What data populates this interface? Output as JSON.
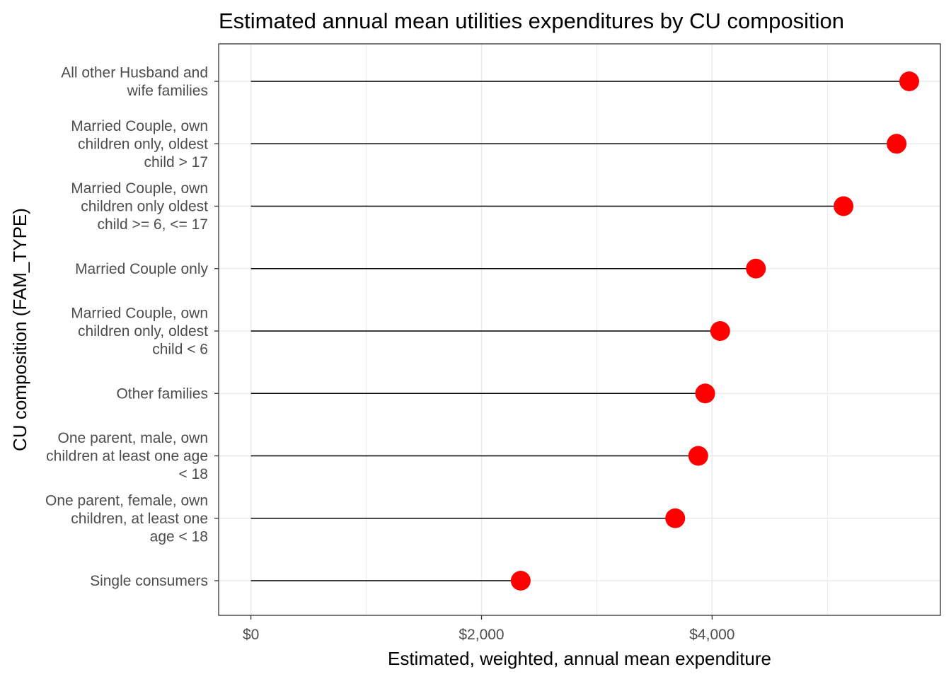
{
  "chart_data": {
    "type": "lollipop",
    "title": "Estimated annual mean utilities expenditures by CU composition",
    "xlabel": "Estimated, weighted, annual mean expenditure",
    "ylabel": "CU composition (FAM_TYPE)",
    "xlim": [
      -280,
      5980
    ],
    "x_ticks": [
      0,
      2000,
      4000
    ],
    "x_tick_labels": [
      "$0",
      "$2,000",
      "$4,000"
    ],
    "x_minor_ticks": [
      1000,
      3000,
      5000
    ],
    "grid": true,
    "legend": "none",
    "colors": {
      "point": "#ff0000",
      "stem": "#000000",
      "grid": "#ebebeb",
      "border": "#333333"
    },
    "categories": [
      [
        "All other Husband and",
        "wife families"
      ],
      [
        "Married Couple, own",
        "children only, oldest",
        "child > 17"
      ],
      [
        "Married Couple, own",
        "children only oldest",
        "child >= 6, <= 17"
      ],
      [
        "Married Couple only"
      ],
      [
        "Married Couple, own",
        "children only, oldest",
        "child < 6"
      ],
      [
        "Other families"
      ],
      [
        "One parent, male, own",
        "children at least one age",
        "< 18"
      ],
      [
        "One parent, female, own",
        "children, at least one",
        "age < 18"
      ],
      [
        "Single consumers"
      ]
    ],
    "values": [
      5710,
      5600,
      5140,
      4380,
      4070,
      3940,
      3880,
      3680,
      2340
    ]
  }
}
